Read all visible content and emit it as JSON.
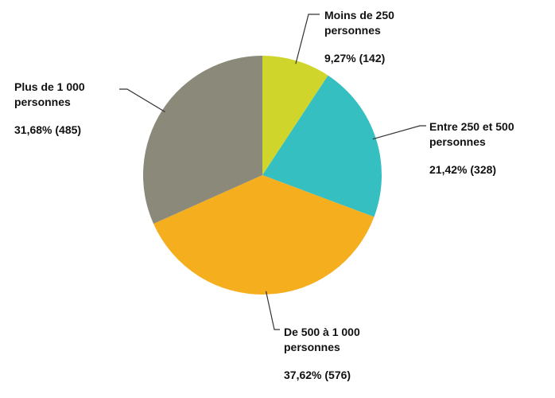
{
  "chart_data": {
    "type": "pie",
    "categories": [
      "Moins de 250 personnes",
      "Entre 250 et 500 personnes",
      "De 500 à 1 000 personnes",
      "Plus de 1 000 personnes"
    ],
    "values": [
      9.27,
      21.42,
      37.62,
      31.68
    ],
    "value_labels": [
      "9,27% (142)",
      "21,42% (328)",
      "37,62% (576)",
      "31,68% (485)"
    ],
    "colors": [
      "#cfd52a",
      "#35bfc1",
      "#f5ae1e",
      "#8b8a7a"
    ]
  }
}
